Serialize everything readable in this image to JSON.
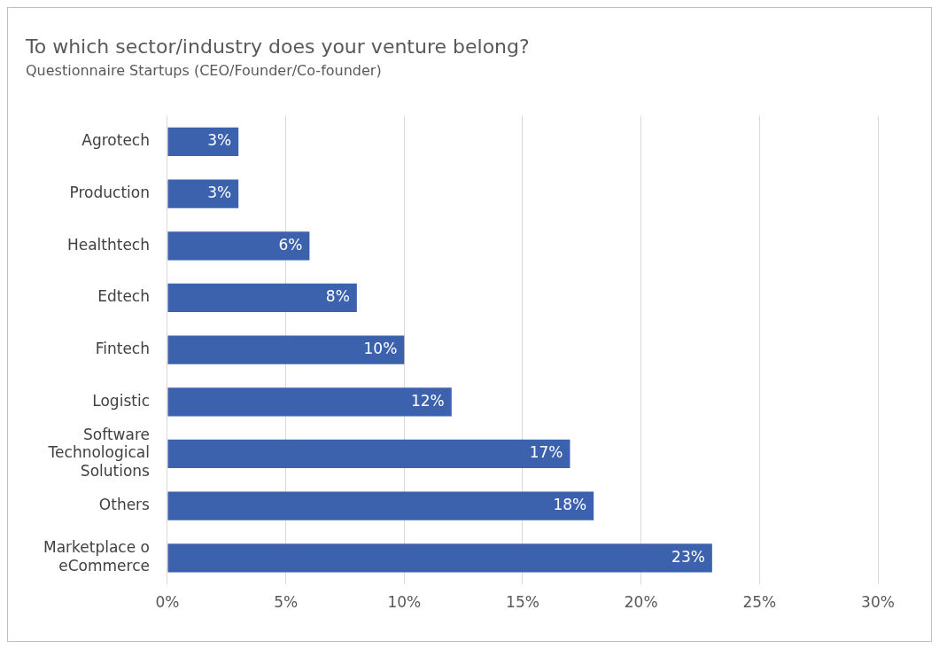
{
  "chart_data": {
    "type": "bar",
    "orientation": "horizontal",
    "title": "To which sector/industry does your venture belong?",
    "subtitle": "Questionnaire Startups (CEO/Founder/Co-founder)",
    "categories": [
      "Agrotech",
      "Production",
      "Healthtech",
      "Edtech",
      "Fintech",
      "Logistic",
      "Software\nTechnological\nSolutions",
      "Others",
      "Marketplace o\neCommerce"
    ],
    "values": [
      3,
      3,
      6,
      8,
      10,
      12,
      17,
      18,
      23
    ],
    "value_labels": [
      "3%",
      "3%",
      "6%",
      "8%",
      "10%",
      "12%",
      "17%",
      "18%",
      "23%"
    ],
    "color": "#3c62ad",
    "xlim": [
      0,
      30
    ],
    "xticks": [
      {
        "value": 0,
        "label": "0%"
      },
      {
        "value": 5,
        "label": "5%"
      },
      {
        "value": 10,
        "label": "10%"
      },
      {
        "value": 15,
        "label": "15%"
      },
      {
        "value": 20,
        "label": "20%"
      },
      {
        "value": 25,
        "label": "25%"
      },
      {
        "value": 30,
        "label": "30%"
      }
    ],
    "grid": "x",
    "legend": false
  }
}
